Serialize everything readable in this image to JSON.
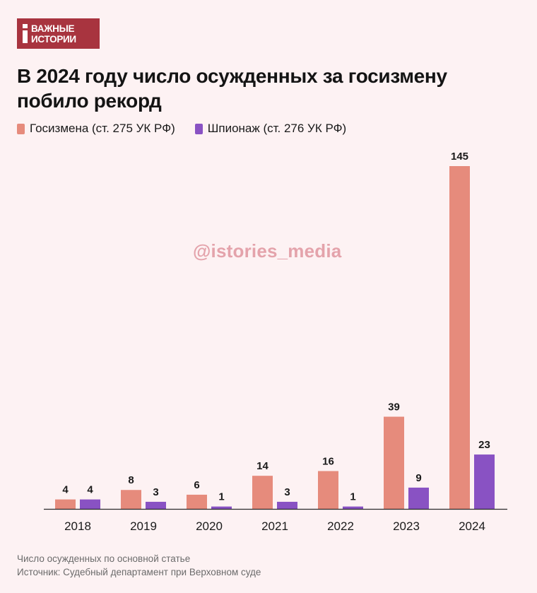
{
  "brand": {
    "line1": "ВАЖНЫЕ",
    "line2": "ИСТОРИИ"
  },
  "title_line1": "В 2024 году число осужденных за госизмену",
  "title_line2": "побило рекорд",
  "watermark": "@istories_media",
  "colors": {
    "treason": "#e68b7c",
    "espionage": "#8952c3",
    "background": "#fdf2f3",
    "brand": "#a8343f"
  },
  "chart_data": {
    "type": "bar",
    "title": "В 2024 году число осужденных за госизмену побило рекорд",
    "categories": [
      "2018",
      "2019",
      "2020",
      "2021",
      "2022",
      "2023",
      "2024"
    ],
    "series": [
      {
        "name": "Госизмена (ст. 275 УК РФ)",
        "values": [
          4,
          8,
          6,
          14,
          16,
          39,
          145
        ]
      },
      {
        "name": "Шпионаж (ст. 276 УК РФ)",
        "values": [
          4,
          3,
          1,
          3,
          1,
          9,
          23
        ]
      }
    ],
    "ylim": [
      0,
      145
    ],
    "xlabel": "",
    "ylabel": "",
    "grid": false,
    "legend_position": "top-left"
  },
  "footer": {
    "note": "Число осужденных по основной статье",
    "source": "Источник: Судебный департамент при Верховном суде"
  }
}
